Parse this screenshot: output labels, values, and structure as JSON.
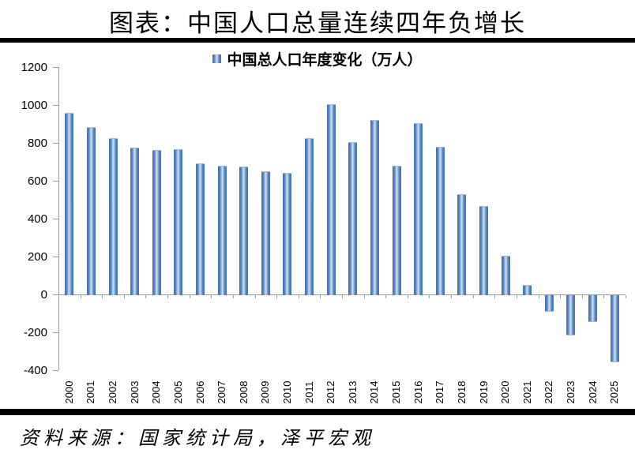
{
  "header": {
    "title": "图表：中国人口总量连续四年负增长"
  },
  "legend": {
    "label": "中国总人口年度变化（万人）"
  },
  "footer": {
    "source": "资料来源：国家统计局，泽平宏观"
  },
  "colors": {
    "bar_edge": "#3f6fae",
    "bar_center": "#d7e4f3",
    "axis": "#9b9b9b",
    "rule": "#000000",
    "text": "#000000",
    "background": "#ffffff"
  },
  "chart_data": {
    "type": "bar",
    "title": "图表：中国人口总量连续四年负增长",
    "legend_entries": [
      "中国总人口年度变化（万人）"
    ],
    "legend_position": "top-center",
    "categories": [
      "2000",
      "2001",
      "2002",
      "2003",
      "2004",
      "2005",
      "2006",
      "2007",
      "2008",
      "2009",
      "2010",
      "2011",
      "2012",
      "2013",
      "2014",
      "2015",
      "2016",
      "2017",
      "2018",
      "2019",
      "2020",
      "2021",
      "2022",
      "2023",
      "2024",
      "2025"
    ],
    "values": [
      957,
      884,
      826,
      774,
      761,
      768,
      692,
      681,
      673,
      648,
      641,
      825,
      1006,
      804,
      920,
      680,
      906,
      779,
      530,
      467,
      204,
      48,
      -85,
      -208,
      -139,
      -350
    ],
    "xlabel": "",
    "ylabel": "",
    "ylim": [
      -400,
      1200
    ],
    "ytick_interval": 200,
    "yticks": [
      1200,
      1000,
      800,
      600,
      400,
      200,
      0,
      -200,
      -400
    ],
    "grid": false,
    "xtick_rotation": 90,
    "source": "资料来源：国家统计局，泽平宏观"
  }
}
